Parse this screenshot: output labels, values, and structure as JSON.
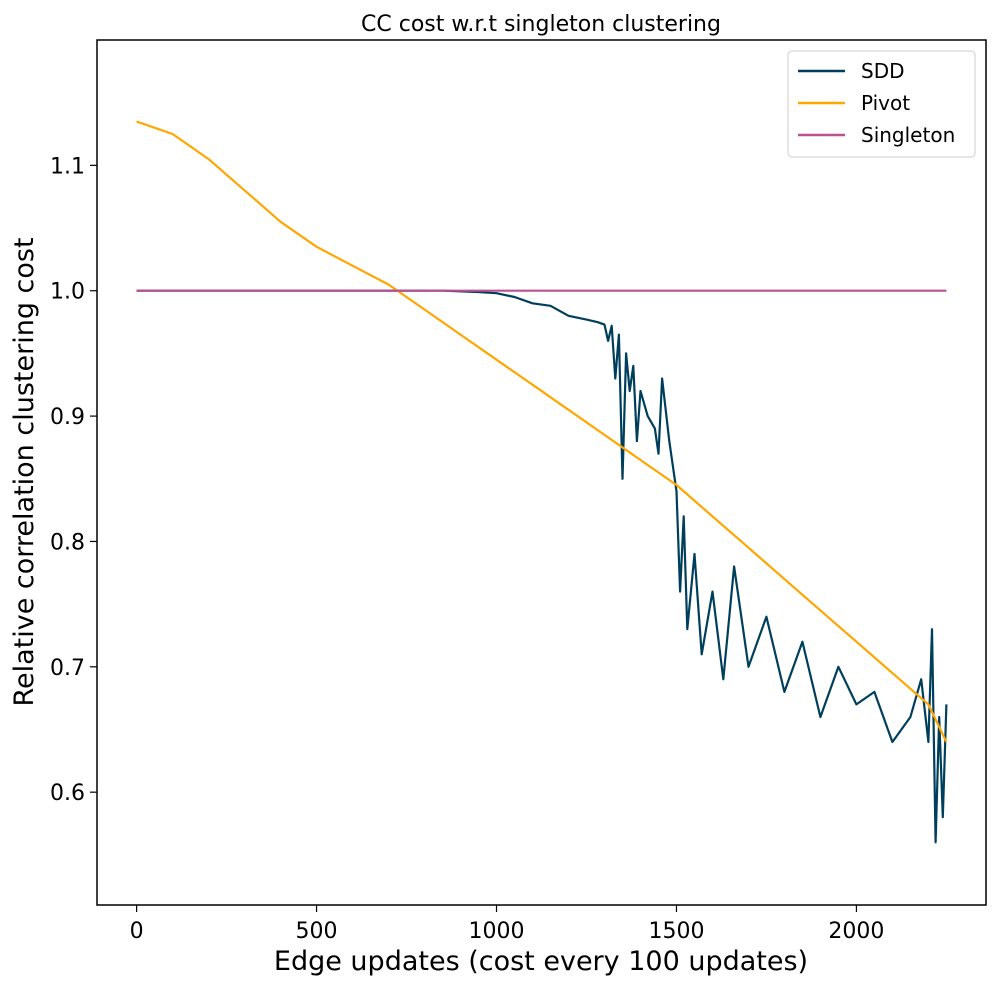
{
  "chart_data": {
    "type": "line",
    "title": "CC cost w.r.t singleton clustering",
    "xlabel": "Edge updates (cost every 100 updates)",
    "ylabel": "Relative correlation clustering cost",
    "xlim": [
      -110,
      2360
    ],
    "ylim": [
      0.51,
      1.2
    ],
    "xticks": [
      0,
      500,
      1000,
      1500,
      2000
    ],
    "xtick_labels": [
      "0",
      "500",
      "1000",
      "1500",
      "2000"
    ],
    "yticks": [
      0.6,
      0.7,
      0.8,
      0.9,
      1.0,
      1.1
    ],
    "ytick_labels": [
      "0.6",
      "0.7",
      "0.8",
      "0.9",
      "1.0",
      "1.1"
    ],
    "grid": false,
    "legend_position": "top-right",
    "series": [
      {
        "name": "SDD",
        "color": "#003f5c",
        "x": [
          0,
          500,
          850,
          950,
          1000,
          1050,
          1100,
          1150,
          1200,
          1250,
          1280,
          1300,
          1310,
          1320,
          1330,
          1340,
          1350,
          1360,
          1370,
          1380,
          1390,
          1400,
          1420,
          1440,
          1450,
          1460,
          1480,
          1500,
          1510,
          1520,
          1530,
          1550,
          1570,
          1600,
          1630,
          1660,
          1700,
          1750,
          1800,
          1850,
          1900,
          1950,
          2000,
          2050,
          2100,
          2150,
          2180,
          2200,
          2210,
          2220,
          2230,
          2240,
          2250
        ],
        "y": [
          1.0,
          1.0,
          1.0,
          0.999,
          0.998,
          0.995,
          0.99,
          0.988,
          0.98,
          0.977,
          0.975,
          0.973,
          0.96,
          0.972,
          0.93,
          0.965,
          0.85,
          0.95,
          0.92,
          0.94,
          0.88,
          0.92,
          0.9,
          0.89,
          0.87,
          0.93,
          0.88,
          0.84,
          0.76,
          0.82,
          0.73,
          0.79,
          0.71,
          0.76,
          0.69,
          0.78,
          0.7,
          0.74,
          0.68,
          0.72,
          0.66,
          0.7,
          0.67,
          0.68,
          0.64,
          0.66,
          0.69,
          0.64,
          0.73,
          0.56,
          0.66,
          0.58,
          0.67
        ]
      },
      {
        "name": "Pivot",
        "color": "#ffa600",
        "x": [
          0,
          100,
          200,
          300,
          400,
          500,
          600,
          700,
          800,
          900,
          1000,
          1100,
          1200,
          1300,
          1400,
          1500,
          1600,
          1700,
          1800,
          1900,
          2000,
          2100,
          2200,
          2250
        ],
        "y": [
          1.135,
          1.125,
          1.105,
          1.08,
          1.055,
          1.035,
          1.02,
          1.005,
          0.985,
          0.965,
          0.945,
          0.925,
          0.905,
          0.885,
          0.865,
          0.845,
          0.82,
          0.795,
          0.77,
          0.745,
          0.72,
          0.695,
          0.67,
          0.64
        ]
      },
      {
        "name": "Singleton",
        "color": "#bc5090",
        "x": [
          0,
          2250
        ],
        "y": [
          1.0,
          1.0
        ]
      }
    ]
  }
}
